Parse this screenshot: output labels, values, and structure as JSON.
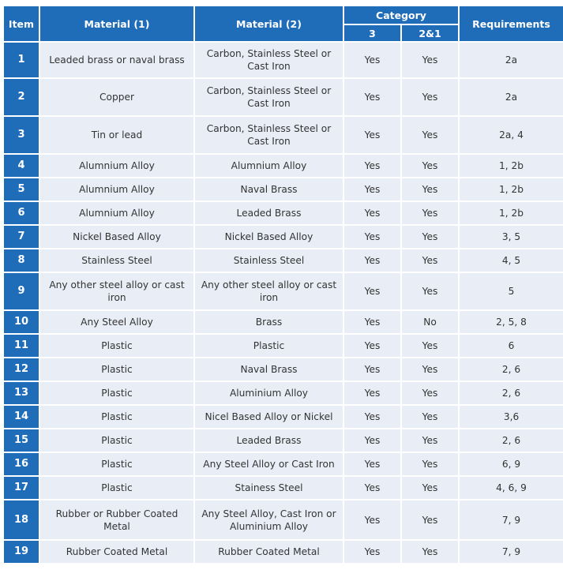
{
  "table": {
    "headers": {
      "item": "Item",
      "material1": "Material (1)",
      "material2": "Material (2)",
      "category": "Category",
      "cat3": "3",
      "cat21": "2&1",
      "requirements": "Requirements"
    },
    "rows": [
      {
        "item": "1",
        "material1": "Leaded brass or naval brass",
        "material2": "Carbon, Stainless Steel or Cast Iron",
        "cat3": "Yes",
        "cat21": "Yes",
        "requirements": "2a"
      },
      {
        "item": "2",
        "material1": "Copper",
        "material2": "Carbon, Stainless Steel or Cast Iron",
        "cat3": "Yes",
        "cat21": "Yes",
        "requirements": "2a"
      },
      {
        "item": "3",
        "material1": "Tin or lead",
        "material2": "Carbon, Stainless Steel or Cast Iron",
        "cat3": "Yes",
        "cat21": "Yes",
        "requirements": "2a, 4"
      },
      {
        "item": "4",
        "material1": "Alumnium Alloy",
        "material2": "Alumnium Alloy",
        "cat3": "Yes",
        "cat21": "Yes",
        "requirements": "1, 2b"
      },
      {
        "item": "5",
        "material1": "Alumnium Alloy",
        "material2": "Naval Brass",
        "cat3": "Yes",
        "cat21": "Yes",
        "requirements": "1, 2b"
      },
      {
        "item": "6",
        "material1": "Alumnium Alloy",
        "material2": "Leaded Brass",
        "cat3": "Yes",
        "cat21": "Yes",
        "requirements": "1, 2b"
      },
      {
        "item": "7",
        "material1": "Nickel Based Alloy",
        "material2": "Nickel Based Alloy",
        "cat3": "Yes",
        "cat21": "Yes",
        "requirements": "3, 5"
      },
      {
        "item": "8",
        "material1": "Stainless Steel",
        "material2": "Stainless Steel",
        "cat3": "Yes",
        "cat21": "Yes",
        "requirements": "4, 5"
      },
      {
        "item": "9",
        "material1": "Any other steel alloy or cast iron",
        "material2": "Any other steel alloy or cast iron",
        "cat3": "Yes",
        "cat21": "Yes",
        "requirements": "5"
      },
      {
        "item": "10",
        "material1": "Any Steel Alloy",
        "material2": "Brass",
        "cat3": "Yes",
        "cat21": "No",
        "requirements": "2, 5, 8"
      },
      {
        "item": "11",
        "material1": "Plastic",
        "material2": "Plastic",
        "cat3": "Yes",
        "cat21": "Yes",
        "requirements": "6"
      },
      {
        "item": "12",
        "material1": "Plastic",
        "material2": "Naval Brass",
        "cat3": "Yes",
        "cat21": "Yes",
        "requirements": "2, 6"
      },
      {
        "item": "13",
        "material1": "Plastic",
        "material2": "Aluminium Alloy",
        "cat3": "Yes",
        "cat21": "Yes",
        "requirements": "2, 6"
      },
      {
        "item": "14",
        "material1": "Plastic",
        "material2": "Nicel Based Alloy or Nickel",
        "cat3": "Yes",
        "cat21": "Yes",
        "requirements": "3,6"
      },
      {
        "item": "15",
        "material1": "Plastic",
        "material2": "Leaded Brass",
        "cat3": "Yes",
        "cat21": "Yes",
        "requirements": "2, 6"
      },
      {
        "item": "16",
        "material1": "Plastic",
        "material2": "Any Steel Alloy or Cast Iron",
        "cat3": "Yes",
        "cat21": "Yes",
        "requirements": "6, 9"
      },
      {
        "item": "17",
        "material1": "Plastic",
        "material2": "Stainess Steel",
        "cat3": "Yes",
        "cat21": "Yes",
        "requirements": "4, 6, 9"
      },
      {
        "item": "18",
        "material1": "Rubber or Rubber Coated Metal",
        "material2": "Any Steel Alloy, Cast Iron or Aluminium Alloy",
        "cat3": "Yes",
        "cat21": "Yes",
        "requirements": "7, 9"
      },
      {
        "item": "19",
        "material1": "Rubber Coated Metal",
        "material2": "Rubber Coated Metal",
        "cat3": "Yes",
        "cat21": "Yes",
        "requirements": "7, 9"
      }
    ]
  }
}
